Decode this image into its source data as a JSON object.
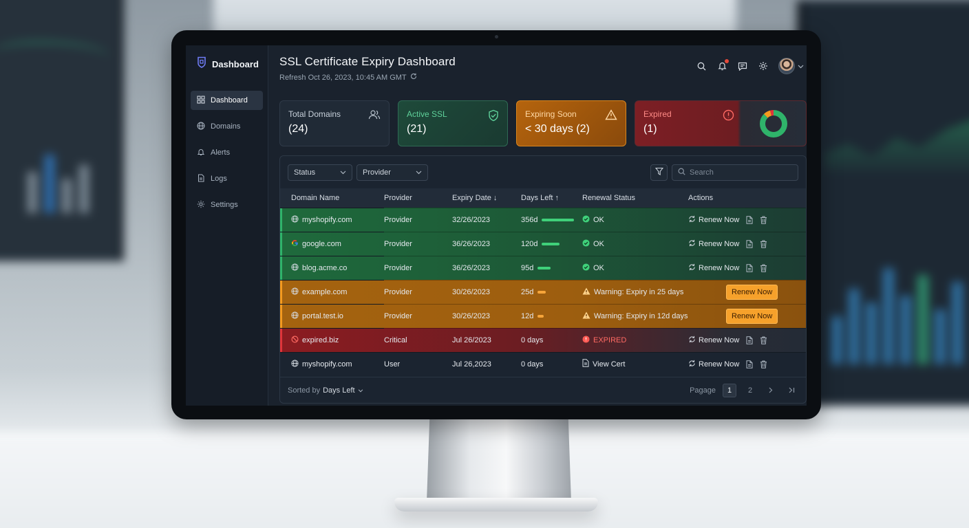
{
  "app": {
    "brand": "Dashboard",
    "title": "SSL Certificate Expiry Dashboard",
    "refresh": "Refresh Oct 26, 2023, 10:45 AM GMT"
  },
  "sidebar": {
    "items": [
      {
        "label": "Dashboard",
        "icon": "grid-icon",
        "active": true
      },
      {
        "label": "Domains",
        "icon": "globe-icon"
      },
      {
        "label": "Alerts",
        "icon": "bell-icon"
      },
      {
        "label": "Logs",
        "icon": "document-icon"
      },
      {
        "label": "Settings",
        "icon": "gear-icon"
      }
    ]
  },
  "cards": [
    {
      "label": "Total Domains",
      "value": "(24)",
      "icon": "users-icon"
    },
    {
      "label": "Active SSL",
      "value": "(21)",
      "icon": "shield-check-icon",
      "color": "#5fd19a"
    },
    {
      "label": "Expiring Soon",
      "value": "< 30 days (2)",
      "icon": "warning-icon",
      "color": "#f59a1e"
    },
    {
      "label": "Expired",
      "value": "(1)",
      "icon": "alert-circle-icon",
      "color": "#ff6a63"
    }
  ],
  "filters": {
    "status": "Status",
    "provider": "Provider",
    "search_placeholder": "Search"
  },
  "table": {
    "columns": [
      "Domain Name",
      "Provider",
      "Expiry Date",
      "Days Left",
      "Renewal Status",
      "Actions"
    ],
    "sort_arrows": {
      "expiry": "↓",
      "days": "↑"
    },
    "renew_label": "Renew Now",
    "rows": [
      {
        "domain": "myshopify.com",
        "provider": "Provider",
        "expiry": "32/26/2023",
        "days": "356d",
        "days_fraction": 0.98,
        "status": "OK",
        "tone": "green"
      },
      {
        "domain": "google.com",
        "provider": "Provider",
        "expiry": "36/26/2023",
        "days": "120d",
        "days_fraction": 0.55,
        "status": "OK",
        "tone": "green"
      },
      {
        "domain": "blog.acme.co",
        "provider": "Provider",
        "expiry": "36/26/2023",
        "days": "95d",
        "days_fraction": 0.4,
        "status": "OK",
        "tone": "green"
      },
      {
        "domain": "example.com",
        "provider": "Provider",
        "expiry": "30/26/2023",
        "days": "25d",
        "days_fraction": 0.25,
        "status": "Warning: Expiry in 25 days",
        "tone": "orange"
      },
      {
        "domain": "portal.test.io",
        "provider": "Provider",
        "expiry": "30/26/2023",
        "days": "12d",
        "days_fraction": 0.18,
        "status": "Warning: Expiry in 12d days",
        "tone": "orange"
      },
      {
        "domain": "expired.biz",
        "provider": "Critical",
        "expiry": "Jul 26/2023",
        "days": "0 days",
        "days_fraction": 0,
        "status": "EXPIRED",
        "tone": "red"
      },
      {
        "domain": "myshopify.com",
        "provider": "User",
        "expiry": "Jul 26,2023",
        "days": "0 days",
        "days_fraction": 0,
        "status": "View Cert",
        "tone": "plain"
      }
    ]
  },
  "footer": {
    "sorted_prefix": "Sorted by",
    "sorted_value": "Days Left",
    "page_label": "Pagage",
    "pages": [
      "1",
      "2"
    ],
    "current_page": "1"
  },
  "donut": [
    {
      "label": "ok",
      "value": 21,
      "color": "#2fb36a"
    },
    {
      "label": "expiring",
      "value": 2,
      "color": "#f59a1e"
    },
    {
      "label": "expired",
      "value": 1,
      "color": "#e0343a"
    }
  ]
}
